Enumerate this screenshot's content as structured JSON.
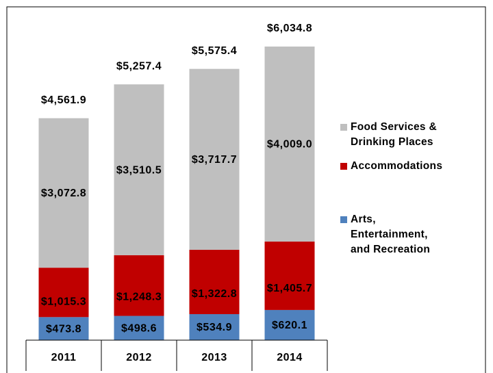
{
  "chart_data": {
    "type": "stacked-bar",
    "categories": [
      "2011",
      "2012",
      "2013",
      "2014"
    ],
    "series": [
      {
        "name": "Arts, Entertainment, and Recreation",
        "color": "#4f81bd",
        "values": [
          473.8,
          498.6,
          534.9,
          620.1
        ],
        "value_labels": [
          "$473.8",
          "$498.6",
          "$534.9",
          "$620.1"
        ]
      },
      {
        "name": "Accommodations",
        "color": "#c00000",
        "values": [
          1015.3,
          1248.3,
          1322.8,
          1405.7
        ],
        "value_labels": [
          "$1,015.3",
          "$1,248.3",
          "$1,322.8",
          "$1,405.7"
        ]
      },
      {
        "name": "Food Services & Drinking Places",
        "color": "#bfbfbf",
        "values": [
          3072.8,
          3510.5,
          3717.7,
          4009.0
        ],
        "value_labels": [
          "$3,072.8",
          "$3,510.5",
          "$3,717.7",
          "$4,009.0"
        ]
      }
    ],
    "totals": [
      4561.9,
      5257.4,
      5575.4,
      6034.8
    ],
    "total_labels": [
      "$4,561.9",
      "$5,257.4",
      "$5,575.4",
      "$6,034.8"
    ],
    "legend": "right"
  }
}
